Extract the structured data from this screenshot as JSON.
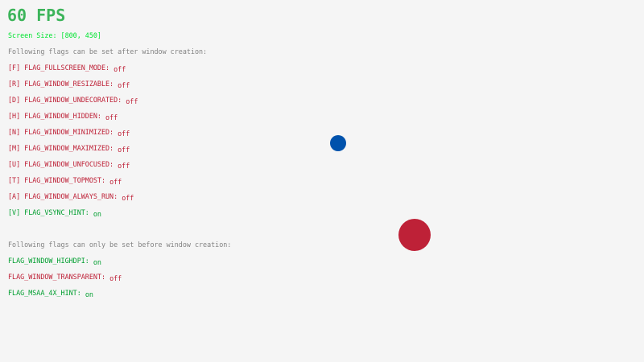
{
  "fps": "60 FPS",
  "screen_size": "Screen Size: [800, 450]",
  "after_header": "Following flags can be set after window creation:",
  "after_flags": [
    {
      "label": "[F] FLAG_FULLSCREEN_MODE: ",
      "value": "off",
      "state": "off"
    },
    {
      "label": "[R] FLAG_WINDOW_RESIZABLE: ",
      "value": "off",
      "state": "off"
    },
    {
      "label": "[D] FLAG_WINDOW_UNDECORATED: ",
      "value": "off",
      "state": "off"
    },
    {
      "label": "[H] FLAG_WINDOW_HIDDEN: ",
      "value": "off",
      "state": "off"
    },
    {
      "label": "[N] FLAG_WINDOW_MINIMIZED: ",
      "value": "off",
      "state": "off"
    },
    {
      "label": "[M] FLAG_WINDOW_MAXIMIZED: ",
      "value": "off",
      "state": "off"
    },
    {
      "label": "[U] FLAG_WINDOW_UNFOCUSED: ",
      "value": "off",
      "state": "off"
    },
    {
      "label": "[T] FLAG_WINDOW_TOPMOST: ",
      "value": "off",
      "state": "off"
    },
    {
      "label": "[A] FLAG_WINDOW_ALWAYS_RUN: ",
      "value": "off",
      "state": "off"
    },
    {
      "label": "[V] FLAG_VSYNC_HINT: ",
      "value": "on",
      "state": "on"
    }
  ],
  "before_header": "Following flags can only be set before window creation:",
  "before_flags": [
    {
      "label": "FLAG_WINDOW_HIGHDPI: ",
      "value": "on",
      "state": "on"
    },
    {
      "label": "FLAG_WINDOW_TRANSPARENT: ",
      "value": "off",
      "state": "off"
    },
    {
      "label": "FLAG_MSAA_4X_HINT: ",
      "value": "on",
      "state": "on"
    }
  ],
  "colors": {
    "on": "#009E2F",
    "off": "#BE2137",
    "background": "#F5F5F5",
    "blue_ball": "#0052AC",
    "red_ball": "#BE2137",
    "screen_size": "#00E430",
    "fps": "#3CB45A",
    "header": "#828282"
  }
}
